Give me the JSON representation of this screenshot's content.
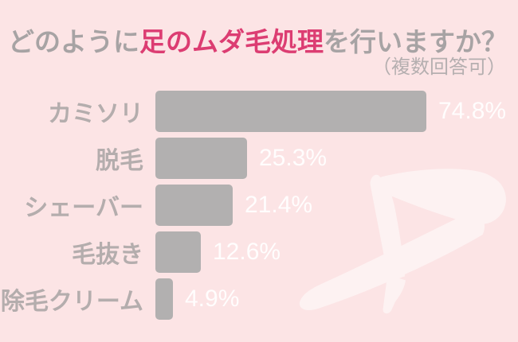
{
  "header": {
    "title_prefix": "どのように",
    "title_highlight": "足のムダ毛処理",
    "title_suffix": "を行いますか？",
    "subtitle": "（複数回答可）"
  },
  "chart_data": {
    "type": "bar",
    "orientation": "horizontal",
    "title": "どのように足のムダ毛処理を行いますか？",
    "subtitle": "（複数回答可）",
    "categories": [
      "カミソリ",
      "脱毛",
      "シェーバー",
      "毛抜き",
      "除毛クリーム"
    ],
    "values": [
      74.8,
      25.3,
      21.4,
      12.6,
      4.9
    ],
    "value_labels": [
      "74.8%",
      "25.3%",
      "21.4%",
      "12.6%",
      "4.9%"
    ],
    "xlim": [
      0,
      100
    ],
    "grid": false,
    "legend": false,
    "bar_color": "#b2b0b0",
    "category_label_color": "#b4adad",
    "value_label_color": "#ffffff"
  },
  "colors": {
    "background": "#fce4e5",
    "accent_pink": "#dc3d72",
    "title_gray": "#a7a3a4",
    "legs_silhouette": "#fdf2f2"
  },
  "decoration": {
    "legs_illustration": "crossed-legs-silhouette"
  }
}
